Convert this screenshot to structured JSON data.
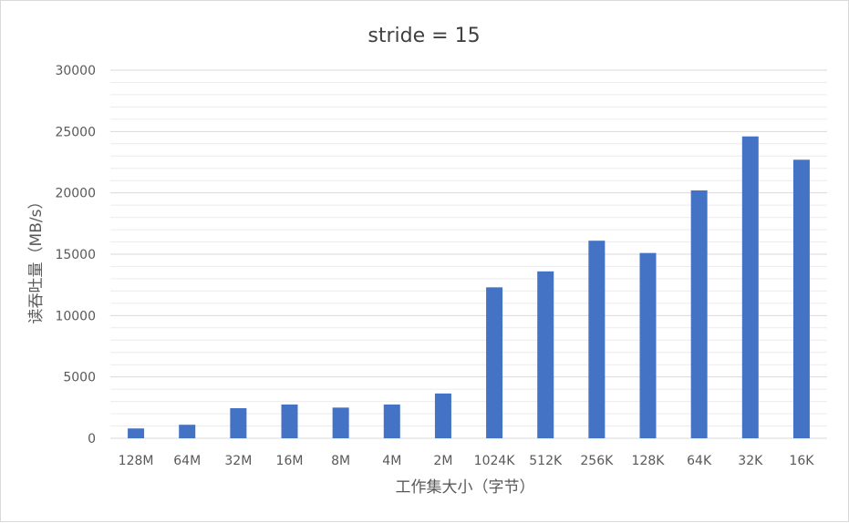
{
  "chart_data": {
    "type": "bar",
    "title": "stride = 15",
    "xlabel": "工作集大小（字节）",
    "ylabel": "读吞吐量（MB/s）",
    "categories": [
      "128M",
      "64M",
      "32M",
      "16M",
      "8M",
      "4M",
      "2M",
      "1024K",
      "512K",
      "256K",
      "128K",
      "64K",
      "32K",
      "16K"
    ],
    "series": [
      {
        "values": [
          800,
          1100,
          2450,
          2750,
          2500,
          2750,
          3650,
          12300,
          13600,
          16100,
          15100,
          20200,
          24600,
          22700
        ]
      }
    ],
    "ylim": [
      0,
      30000
    ],
    "yticks": [
      0,
      5000,
      10000,
      15000,
      20000,
      25000,
      30000
    ],
    "grid": true,
    "legend": "none",
    "colors": {
      "bar": "#4472c4",
      "grid": "#d9d9d9",
      "text": "#595959"
    }
  }
}
